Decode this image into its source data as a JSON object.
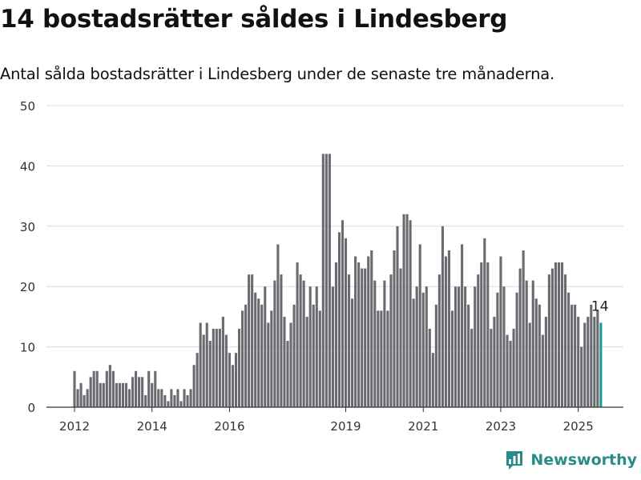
{
  "header": {
    "title": "14 bostadsrätter såldes i Lindesberg",
    "subtitle": "Antal sålda bostadsrätter i Lindesberg under de senaste tre månaderna."
  },
  "logo": {
    "text": "Newsworthy",
    "icon": "bar-chart-icon"
  },
  "colors": {
    "bar": "#6b6a70",
    "highlight": "#1a9b94",
    "grid": "#dcdcdc",
    "axis": "#333333",
    "brand": "#2a8c89"
  },
  "chart_data": {
    "type": "bar",
    "title": "14 bostadsrätter såldes i Lindesberg",
    "xlabel": "",
    "ylabel": "",
    "ylim": [
      0,
      50
    ],
    "yticks": [
      0,
      10,
      20,
      30,
      40,
      50
    ],
    "grid": true,
    "xticks": [
      {
        "label": "2012",
        "month": "2012-01"
      },
      {
        "label": "2014",
        "month": "2014-01"
      },
      {
        "label": "2016",
        "month": "2016-01"
      },
      {
        "label": "2019",
        "month": "2019-01"
      },
      {
        "label": "2021",
        "month": "2021-01"
      },
      {
        "label": "2023",
        "month": "2023-01"
      },
      {
        "label": "2025",
        "month": "2025-01"
      }
    ],
    "start_month": "2012-01",
    "values": [
      6,
      3,
      4,
      2,
      3,
      5,
      6,
      6,
      4,
      4,
      6,
      7,
      6,
      4,
      4,
      4,
      4,
      3,
      5,
      6,
      5,
      5,
      2,
      6,
      4,
      6,
      3,
      3,
      2,
      1,
      3,
      2,
      3,
      1,
      3,
      2,
      3,
      7,
      9,
      14,
      12,
      14,
      11,
      13,
      13,
      13,
      15,
      12,
      9,
      7,
      9,
      13,
      16,
      17,
      22,
      22,
      19,
      18,
      17,
      20,
      14,
      16,
      21,
      27,
      22,
      15,
      11,
      14,
      17,
      24,
      22,
      21,
      15,
      20,
      17,
      20,
      16,
      42,
      42,
      42,
      20,
      24,
      29,
      31,
      28,
      22,
      18,
      25,
      24,
      23,
      23,
      25,
      26,
      21,
      16,
      16,
      21,
      16,
      22,
      26,
      30,
      23,
      32,
      32,
      31,
      18,
      20,
      27,
      19,
      20,
      13,
      9,
      17,
      22,
      30,
      25,
      26,
      16,
      20,
      20,
      27,
      20,
      17,
      13,
      20,
      22,
      24,
      28,
      24,
      13,
      15,
      19,
      25,
      20,
      12,
      11,
      13,
      19,
      23,
      26,
      21,
      14,
      21,
      18,
      17,
      12,
      15,
      22,
      23,
      24,
      24,
      24,
      22,
      19,
      17,
      17,
      15,
      10,
      14,
      15,
      17,
      15,
      16,
      14
    ],
    "highlight": {
      "index": 163,
      "value": 14,
      "label": "14"
    }
  }
}
